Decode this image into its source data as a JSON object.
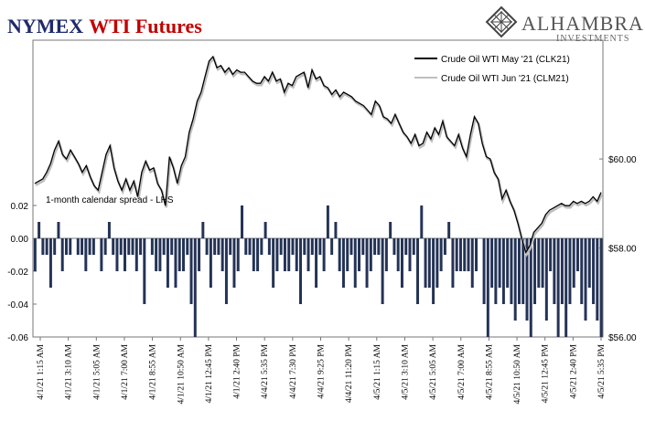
{
  "header": {
    "title_part1": "NYMEX",
    "title_part2": "WTI Futures",
    "title_color1": "#1f2a6b",
    "title_color2": "#c00000",
    "logo_name": "ALHAMBRA",
    "logo_sub": "INVESTMENTS",
    "logo_icon": "diamond-lattice-icon"
  },
  "chart_data": {
    "type": "line+bar",
    "annotation": "1-month calendar spread - LHS",
    "legend_position": "top-right",
    "series": [
      {
        "name": "Crude Oil WTI May '21 (CLK21)",
        "axis": "right",
        "color": "#000000",
        "values": [
          59.45,
          59.5,
          59.55,
          59.7,
          59.9,
          60.2,
          60.4,
          60.1,
          60.0,
          60.2,
          60.05,
          59.9,
          59.7,
          59.85,
          59.6,
          59.4,
          59.3,
          59.7,
          60.1,
          60.3,
          59.8,
          59.5,
          59.3,
          59.55,
          59.3,
          59.5,
          59.15,
          59.7,
          59.95,
          59.75,
          59.8,
          59.45,
          59.3,
          58.95,
          60.05,
          59.8,
          59.45,
          59.85,
          60.05,
          60.6,
          60.9,
          61.3,
          61.5,
          61.85,
          62.2,
          62.3,
          62.05,
          62.1,
          61.95,
          62.05,
          61.9,
          62.0,
          61.95,
          61.95,
          61.85,
          61.75,
          61.7,
          61.7,
          61.85,
          61.75,
          61.95,
          61.75,
          61.8,
          61.5,
          61.7,
          61.65,
          61.85,
          61.9,
          61.95,
          61.6,
          62.0,
          61.8,
          61.85,
          61.65,
          61.6,
          61.45,
          61.55,
          61.4,
          61.5,
          61.45,
          61.4,
          61.3,
          61.25,
          61.2,
          61.1,
          61.0,
          61.3,
          61.2,
          60.95,
          60.9,
          60.8,
          61.0,
          60.8,
          60.6,
          60.5,
          60.35,
          60.55,
          60.3,
          60.35,
          60.6,
          60.45,
          60.7,
          60.55,
          60.85,
          60.5,
          60.4,
          60.3,
          60.55,
          60.25,
          60.05,
          60.55,
          60.95,
          60.8,
          60.35,
          60.05,
          60.0,
          59.7,
          59.55,
          59.1,
          59.3,
          59.05,
          58.85,
          58.55,
          58.2,
          57.9,
          58.05,
          58.35,
          58.45,
          58.55,
          58.75,
          58.85,
          58.9,
          58.95,
          59.0,
          58.95,
          58.95,
          59.05,
          59.0,
          59.05,
          59.0,
          59.05,
          59.15,
          59.05,
          59.25
        ]
      },
      {
        "name": "Crude Oil WTI Jun '21 (CLM21)",
        "axis": "right",
        "color": "#bfbfbf"
      },
      {
        "name": "1-month calendar spread",
        "axis": "left",
        "color": "#243356",
        "type": "bar",
        "values": [
          -0.02,
          0.01,
          -0.01,
          -0.01,
          -0.03,
          -0.01,
          0.01,
          -0.02,
          -0.01,
          -0.01,
          0.0,
          -0.01,
          -0.01,
          -0.02,
          -0.01,
          -0.01,
          0.0,
          -0.02,
          -0.01,
          0.01,
          -0.01,
          -0.02,
          -0.01,
          -0.02,
          -0.01,
          -0.01,
          -0.02,
          -0.01,
          -0.04,
          0.0,
          -0.01,
          -0.02,
          -0.02,
          -0.01,
          -0.03,
          -0.01,
          -0.03,
          -0.02,
          -0.02,
          -0.01,
          -0.04,
          -0.06,
          -0.02,
          0.01,
          -0.01,
          -0.03,
          -0.01,
          -0.01,
          -0.02,
          -0.04,
          -0.01,
          -0.03,
          -0.02,
          0.02,
          -0.01,
          -0.01,
          -0.02,
          -0.02,
          -0.01,
          0.01,
          -0.01,
          -0.03,
          -0.02,
          -0.01,
          -0.02,
          -0.02,
          -0.01,
          -0.02,
          -0.04,
          -0.01,
          -0.02,
          -0.01,
          -0.03,
          -0.01,
          -0.02,
          0.02,
          -0.01,
          0.01,
          -0.02,
          -0.03,
          -0.02,
          -0.01,
          -0.03,
          -0.02,
          -0.01,
          -0.03,
          -0.02,
          -0.01,
          -0.01,
          -0.04,
          -0.02,
          0.01,
          -0.01,
          -0.02,
          -0.03,
          -0.01,
          -0.02,
          -0.01,
          -0.04,
          0.02,
          -0.03,
          -0.03,
          -0.04,
          -0.03,
          -0.02,
          -0.01,
          0.01,
          -0.03,
          -0.02,
          -0.02,
          -0.02,
          -0.02,
          -0.03,
          -0.02,
          0.0,
          -0.04,
          -0.06,
          -0.03,
          -0.04,
          -0.03,
          -0.04,
          -0.03,
          -0.04,
          -0.05,
          -0.04,
          -0.04,
          -0.05,
          -0.06,
          -0.04,
          -0.03,
          -0.03,
          -0.05,
          -0.02,
          -0.04,
          -0.06,
          -0.04,
          -0.06,
          -0.04,
          -0.03,
          -0.02,
          -0.04,
          -0.05,
          -0.03,
          -0.04,
          -0.05,
          -0.06
        ]
      }
    ],
    "left_axis": {
      "ticks": [
        "0.02",
        "0.00",
        "-0.02",
        "-0.04",
        "-0.06"
      ],
      "ylim": [
        -0.06,
        0.02
      ]
    },
    "right_axis": {
      "ticks": [
        "$60.00",
        "$58.00",
        "$56.00"
      ],
      "ylim": [
        56.0,
        62.3
      ]
    },
    "x_labels": [
      "4/1/21 1:15 AM",
      "4/1/21 3:10 AM",
      "4/1/21 5:05 AM",
      "4/1/21 7:00 AM",
      "4/1/21 8:55 AM",
      "4/1/21 10:50 AM",
      "4/1/21 12:45 PM",
      "4/1/21 2:40 PM",
      "4/4/21 5:35 PM",
      "4/4/21 7:30 PM",
      "4/4/21 9:25 PM",
      "4/4/21 11:20 PM",
      "4/5/21 1:15 AM",
      "4/5/21 3:10 AM",
      "4/5/21 5:05 AM",
      "4/5/21 7:00 AM",
      "4/5/21 8:55 AM",
      "4/5/21 10:50 AM",
      "4/5/21 12:45 PM",
      "4/5/21 2:40 PM",
      "4/5/21 5:35 PM"
    ]
  }
}
